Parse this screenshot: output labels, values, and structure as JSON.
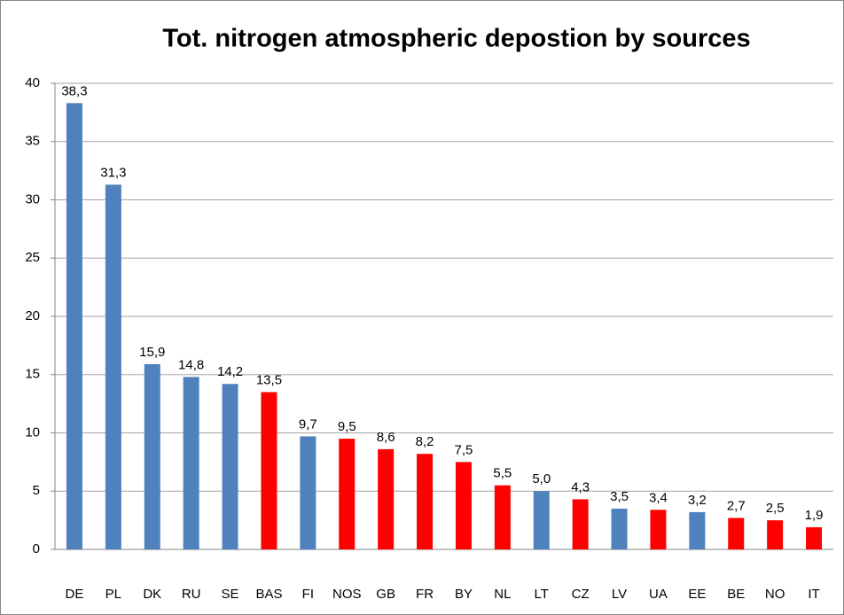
{
  "chart_data": {
    "type": "bar",
    "title": "Tot. nitrogen atmospheric depostion by sources",
    "categories": [
      "DE",
      "PL",
      "DK",
      "RU",
      "SE",
      "BAS",
      "FI",
      "NOS",
      "GB",
      "FR",
      "BY",
      "NL",
      "LT",
      "CZ",
      "LV",
      "UA",
      "EE",
      "BE",
      "NO",
      "IT"
    ],
    "values": [
      38.3,
      31.3,
      15.9,
      14.8,
      14.2,
      13.5,
      9.7,
      9.5,
      8.6,
      8.2,
      7.5,
      5.5,
      5.0,
      4.3,
      3.5,
      3.4,
      3.2,
      2.7,
      2.5,
      1.9
    ],
    "value_labels": [
      "38,3",
      "31,3",
      "15,9",
      "14,8",
      "14,2",
      "13,5",
      "9,7",
      "9,5",
      "8,6",
      "8,2",
      "7,5",
      "5,5",
      "5,0",
      "4,3",
      "3,5",
      "3,4",
      "3,2",
      "2,7",
      "2,5",
      "1,9"
    ],
    "colors": [
      "#4f81bd",
      "#4f81bd",
      "#4f81bd",
      "#4f81bd",
      "#4f81bd",
      "#ff0000",
      "#4f81bd",
      "#ff0000",
      "#ff0000",
      "#ff0000",
      "#ff0000",
      "#ff0000",
      "#4f81bd",
      "#ff0000",
      "#4f81bd",
      "#ff0000",
      "#4f81bd",
      "#ff0000",
      "#ff0000",
      "#ff0000"
    ],
    "ylim": [
      0,
      40
    ],
    "yticks": [
      0,
      5,
      10,
      15,
      20,
      25,
      30,
      35,
      40
    ],
    "grid": true
  }
}
